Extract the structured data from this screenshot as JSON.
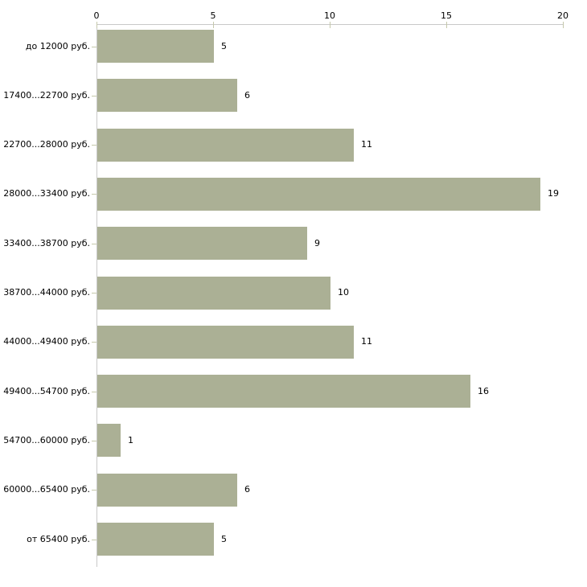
{
  "chart_data": {
    "type": "bar",
    "orientation": "horizontal",
    "categories": [
      "до 12000 руб.",
      "17400...22700 руб.",
      "22700...28000 руб.",
      "28000...33400 руб.",
      "33400...38700 руб.",
      "38700...44000 руб.",
      "44000...49400 руб.",
      "49400...54700 руб.",
      "54700...60000 руб.",
      "60000...65400 руб.",
      "от 65400 руб."
    ],
    "values": [
      5,
      6,
      11,
      19,
      9,
      10,
      11,
      16,
      1,
      6,
      5
    ],
    "x_ticks": [
      "0",
      "5",
      "10",
      "15",
      "20"
    ],
    "x_tick_values": [
      0,
      5,
      10,
      15,
      20
    ],
    "xlim": [
      0,
      20
    ],
    "xlabel": "",
    "ylabel": "",
    "title": "",
    "legend_position": "none",
    "grid": false,
    "value_labels_shown": true,
    "colors": {
      "bar_fill": "#abb095",
      "axis_line": "#c9c9c9",
      "tick_mark": "#c5c8ab",
      "text": "#000000",
      "background": "#ffffff"
    }
  }
}
